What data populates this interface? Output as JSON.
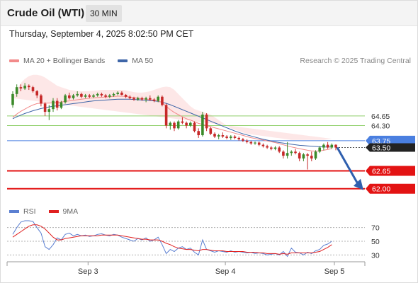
{
  "header": {
    "title": "Crude Oil (WTI)",
    "interval": "30 MIN"
  },
  "datetime": "Thursday, September 4, 2025 8:02:50 PM CET",
  "legend": [
    {
      "label": "MA 20 + Bollinger Bands",
      "color": "#f28a8a"
    },
    {
      "label": "MA 50",
      "color": "#3f66a8"
    }
  ],
  "copyright": "Research © 2025 Trading Central",
  "rsi_legend": [
    {
      "label": "RSI",
      "color": "#5b7fd1"
    },
    {
      "label": "9MA",
      "color": "#e02020"
    }
  ],
  "colors": {
    "bull": "#3b8a2a",
    "bear": "#c62828",
    "resistance": "#8fcf6a",
    "pivot": "#4a7fe0",
    "support": "#e31313",
    "arrow": "#2f5fae",
    "band": "#fde4e4",
    "ma20": "#f28a8a",
    "ma50": "#3f66a8"
  },
  "chart_data": [
    {
      "type": "candlestick",
      "x_ticks": [
        "Sep 3",
        "Sep 4",
        "Sep 5"
      ],
      "ylim": [
        61.4,
        66.4
      ],
      "levels": [
        {
          "value": 64.65,
          "label": "64.65",
          "kind": "resistance"
        },
        {
          "value": 64.3,
          "label": "64.30",
          "kind": "resistance"
        },
        {
          "value": 63.75,
          "label": "63.75",
          "kind": "pivot"
        },
        {
          "value": 62.65,
          "label": "62.65",
          "kind": "support"
        },
        {
          "value": 62.0,
          "label": "62.00",
          "kind": "support"
        }
      ],
      "last_price": {
        "value": 63.5,
        "label": "63.50"
      },
      "forecast_target": 62.0,
      "candles": [
        {
          "o": 65.05,
          "h": 65.55,
          "l": 64.95,
          "c": 65.45
        },
        {
          "o": 65.45,
          "h": 65.8,
          "l": 65.35,
          "c": 65.7
        },
        {
          "o": 65.7,
          "h": 65.8,
          "l": 65.55,
          "c": 65.65
        },
        {
          "o": 65.65,
          "h": 65.85,
          "l": 65.6,
          "c": 65.75
        },
        {
          "o": 65.75,
          "h": 65.8,
          "l": 65.6,
          "c": 65.7
        },
        {
          "o": 65.7,
          "h": 65.75,
          "l": 65.5,
          "c": 65.55
        },
        {
          "o": 65.55,
          "h": 65.6,
          "l": 65.3,
          "c": 65.4
        },
        {
          "o": 65.4,
          "h": 65.45,
          "l": 65.0,
          "c": 65.1
        },
        {
          "o": 65.1,
          "h": 65.15,
          "l": 64.65,
          "c": 64.8
        },
        {
          "o": 64.8,
          "h": 65.05,
          "l": 64.5,
          "c": 64.9
        },
        {
          "o": 64.9,
          "h": 65.3,
          "l": 64.8,
          "c": 65.2
        },
        {
          "o": 65.2,
          "h": 65.3,
          "l": 64.85,
          "c": 64.95
        },
        {
          "o": 64.95,
          "h": 65.2,
          "l": 64.9,
          "c": 65.15
        },
        {
          "o": 65.15,
          "h": 65.45,
          "l": 65.1,
          "c": 65.4
        },
        {
          "o": 65.4,
          "h": 65.5,
          "l": 65.25,
          "c": 65.3
        },
        {
          "o": 65.3,
          "h": 65.45,
          "l": 65.25,
          "c": 65.4
        },
        {
          "o": 65.4,
          "h": 65.55,
          "l": 65.35,
          "c": 65.45
        },
        {
          "o": 65.45,
          "h": 65.5,
          "l": 65.3,
          "c": 65.35
        },
        {
          "o": 65.35,
          "h": 65.45,
          "l": 65.3,
          "c": 65.4
        },
        {
          "o": 65.4,
          "h": 65.45,
          "l": 65.3,
          "c": 65.35
        },
        {
          "o": 65.35,
          "h": 65.45,
          "l": 65.3,
          "c": 65.4
        },
        {
          "o": 65.4,
          "h": 65.5,
          "l": 65.35,
          "c": 65.45
        },
        {
          "o": 65.45,
          "h": 65.5,
          "l": 65.35,
          "c": 65.4
        },
        {
          "o": 65.4,
          "h": 65.45,
          "l": 65.3,
          "c": 65.35
        },
        {
          "o": 65.35,
          "h": 65.45,
          "l": 65.3,
          "c": 65.4
        },
        {
          "o": 65.4,
          "h": 65.5,
          "l": 65.35,
          "c": 65.45
        },
        {
          "o": 65.45,
          "h": 65.55,
          "l": 65.4,
          "c": 65.5
        },
        {
          "o": 65.5,
          "h": 65.55,
          "l": 65.4,
          "c": 65.42
        },
        {
          "o": 65.42,
          "h": 65.45,
          "l": 65.3,
          "c": 65.35
        },
        {
          "o": 65.35,
          "h": 65.4,
          "l": 65.25,
          "c": 65.3
        },
        {
          "o": 65.3,
          "h": 65.35,
          "l": 65.2,
          "c": 65.25
        },
        {
          "o": 65.25,
          "h": 65.35,
          "l": 65.2,
          "c": 65.3
        },
        {
          "o": 65.3,
          "h": 65.35,
          "l": 65.2,
          "c": 65.25
        },
        {
          "o": 65.25,
          "h": 65.35,
          "l": 65.15,
          "c": 65.3
        },
        {
          "o": 65.3,
          "h": 65.4,
          "l": 65.2,
          "c": 65.25
        },
        {
          "o": 65.25,
          "h": 65.3,
          "l": 65.15,
          "c": 65.2
        },
        {
          "o": 65.2,
          "h": 65.4,
          "l": 65.15,
          "c": 65.35
        },
        {
          "o": 65.35,
          "h": 65.4,
          "l": 65.0,
          "c": 65.05
        },
        {
          "o": 65.05,
          "h": 65.1,
          "l": 64.2,
          "c": 64.3
        },
        {
          "o": 64.3,
          "h": 64.45,
          "l": 64.15,
          "c": 64.4
        },
        {
          "o": 64.4,
          "h": 64.45,
          "l": 64.1,
          "c": 64.2
        },
        {
          "o": 64.2,
          "h": 64.5,
          "l": 64.15,
          "c": 64.45
        },
        {
          "o": 64.45,
          "h": 64.6,
          "l": 64.35,
          "c": 64.4
        },
        {
          "o": 64.4,
          "h": 64.45,
          "l": 64.2,
          "c": 64.3
        },
        {
          "o": 64.3,
          "h": 64.45,
          "l": 64.25,
          "c": 64.4
        },
        {
          "o": 64.4,
          "h": 64.45,
          "l": 64.05,
          "c": 64.1
        },
        {
          "o": 64.1,
          "h": 64.2,
          "l": 63.85,
          "c": 63.95
        },
        {
          "o": 63.95,
          "h": 64.8,
          "l": 63.9,
          "c": 64.7
        },
        {
          "o": 64.7,
          "h": 64.75,
          "l": 64.1,
          "c": 64.2
        },
        {
          "o": 64.2,
          "h": 64.25,
          "l": 63.95,
          "c": 64.0
        },
        {
          "o": 64.0,
          "h": 64.05,
          "l": 63.85,
          "c": 63.9
        },
        {
          "o": 63.9,
          "h": 64.0,
          "l": 63.8,
          "c": 63.95
        },
        {
          "o": 63.95,
          "h": 64.05,
          "l": 63.85,
          "c": 63.9
        },
        {
          "o": 63.9,
          "h": 63.95,
          "l": 63.8,
          "c": 63.85
        },
        {
          "o": 63.85,
          "h": 63.95,
          "l": 63.78,
          "c": 63.9
        },
        {
          "o": 63.9,
          "h": 63.95,
          "l": 63.8,
          "c": 63.85
        },
        {
          "o": 63.85,
          "h": 63.9,
          "l": 63.75,
          "c": 63.8
        },
        {
          "o": 63.8,
          "h": 63.85,
          "l": 63.7,
          "c": 63.75
        },
        {
          "o": 63.75,
          "h": 63.8,
          "l": 63.65,
          "c": 63.7
        },
        {
          "o": 63.7,
          "h": 63.75,
          "l": 63.6,
          "c": 63.65
        },
        {
          "o": 63.65,
          "h": 63.72,
          "l": 63.6,
          "c": 63.68
        },
        {
          "o": 63.68,
          "h": 63.72,
          "l": 63.55,
          "c": 63.6
        },
        {
          "o": 63.6,
          "h": 63.65,
          "l": 63.5,
          "c": 63.55
        },
        {
          "o": 63.55,
          "h": 63.6,
          "l": 63.45,
          "c": 63.5
        },
        {
          "o": 63.5,
          "h": 63.55,
          "l": 63.4,
          "c": 63.45
        },
        {
          "o": 63.45,
          "h": 63.55,
          "l": 63.4,
          "c": 63.5
        },
        {
          "o": 63.5,
          "h": 63.55,
          "l": 63.3,
          "c": 63.35
        },
        {
          "o": 63.35,
          "h": 63.4,
          "l": 63.1,
          "c": 63.2
        },
        {
          "o": 63.2,
          "h": 63.7,
          "l": 63.1,
          "c": 63.3
        },
        {
          "o": 63.3,
          "h": 63.4,
          "l": 63.2,
          "c": 63.35
        },
        {
          "o": 63.35,
          "h": 63.45,
          "l": 63.25,
          "c": 63.3
        },
        {
          "o": 63.3,
          "h": 63.35,
          "l": 63.0,
          "c": 63.1
        },
        {
          "o": 63.1,
          "h": 63.3,
          "l": 63.0,
          "c": 63.25
        },
        {
          "o": 63.25,
          "h": 63.3,
          "l": 62.7,
          "c": 63.2
        },
        {
          "o": 63.2,
          "h": 63.35,
          "l": 63.0,
          "c": 63.1
        },
        {
          "o": 63.1,
          "h": 63.4,
          "l": 63.05,
          "c": 63.35
        },
        {
          "o": 63.35,
          "h": 63.55,
          "l": 63.3,
          "c": 63.5
        },
        {
          "o": 63.5,
          "h": 63.65,
          "l": 63.4,
          "c": 63.6
        },
        {
          "o": 63.6,
          "h": 63.7,
          "l": 63.45,
          "c": 63.5
        },
        {
          "o": 63.5,
          "h": 63.65,
          "l": 63.45,
          "c": 63.6
        },
        {
          "o": 63.6,
          "h": 63.62,
          "l": 63.4,
          "c": 63.5
        }
      ],
      "ma20": [
        64.6,
        64.72,
        64.82,
        64.9,
        64.98,
        65.05,
        65.1,
        65.12,
        65.12,
        65.12,
        65.13,
        65.14,
        65.16,
        65.18,
        65.2,
        65.22,
        65.24,
        65.26,
        65.28,
        65.3,
        65.31,
        65.32,
        65.33,
        65.34,
        65.35,
        65.36,
        65.37,
        65.37,
        65.36,
        65.34,
        65.32,
        65.3,
        65.28,
        65.26,
        65.24,
        65.22,
        65.2,
        65.14,
        65.0,
        64.88,
        64.78,
        64.7,
        64.62,
        64.55,
        64.5,
        64.44,
        64.38,
        64.34,
        64.3,
        64.26,
        64.22,
        64.18,
        64.14,
        64.1,
        64.06,
        64.02,
        63.98,
        63.94,
        63.9,
        63.86,
        63.83,
        63.8,
        63.77,
        63.74,
        63.71,
        63.68,
        63.64,
        63.6,
        63.56,
        63.52,
        63.49,
        63.46,
        63.43,
        63.4,
        63.38,
        63.37,
        63.38,
        63.4,
        63.43,
        63.46
      ],
      "bb_upper": [
        65.3,
        65.6,
        65.85,
        66.0,
        66.1,
        66.15,
        66.15,
        66.12,
        66.05,
        65.95,
        65.85,
        65.75,
        65.7,
        65.65,
        65.6,
        65.58,
        65.56,
        65.55,
        65.55,
        65.56,
        65.57,
        65.58,
        65.6,
        65.6,
        65.6,
        65.6,
        65.6,
        65.6,
        65.58,
        65.55,
        65.52,
        65.5,
        65.5,
        65.52,
        65.55,
        65.6,
        65.65,
        65.7,
        65.72,
        65.7,
        65.6,
        65.45,
        65.3,
        65.15,
        65.0,
        64.9,
        64.85,
        64.8,
        64.75,
        64.7,
        64.6,
        64.5,
        64.4,
        64.3,
        64.2,
        64.15,
        64.1,
        64.05,
        64.0,
        63.98,
        63.96,
        63.94,
        63.92,
        63.9,
        63.88,
        63.86,
        63.84,
        63.82,
        63.8,
        63.78,
        63.78,
        63.78,
        63.78,
        63.78,
        63.78,
        63.78,
        63.78,
        63.78,
        63.8,
        63.82
      ],
      "bb_lower": [
        63.9,
        63.85,
        63.8,
        63.8,
        63.85,
        63.95,
        64.1,
        64.25,
        64.4,
        64.5,
        64.6,
        64.7,
        64.78,
        64.85,
        64.9,
        64.95,
        65.0,
        65.02,
        65.04,
        65.05,
        65.06,
        65.07,
        65.07,
        65.08,
        65.1,
        65.12,
        65.14,
        65.14,
        65.14,
        65.13,
        65.12,
        65.1,
        65.06,
        65.0,
        64.9,
        64.8,
        64.7,
        64.55,
        64.3,
        64.05,
        63.9,
        63.8,
        63.75,
        63.75,
        63.78,
        63.8,
        63.82,
        63.85,
        63.86,
        63.84,
        63.82,
        63.8,
        63.78,
        63.76,
        63.74,
        63.72,
        63.7,
        63.68,
        63.66,
        63.62,
        63.58,
        63.54,
        63.5,
        63.46,
        63.42,
        63.38,
        63.34,
        63.3,
        63.25,
        63.2,
        63.15,
        63.1,
        63.05,
        63.0,
        62.98,
        62.96,
        62.98,
        63.0,
        63.02,
        63.05
      ],
      "ma50": [
        64.55,
        64.62,
        64.68,
        64.74,
        64.79,
        64.84,
        64.88,
        64.92,
        64.95,
        64.98,
        65.0,
        65.02,
        65.04,
        65.06,
        65.08,
        65.1,
        65.12,
        65.14,
        65.16,
        65.18,
        65.2,
        65.21,
        65.22,
        65.23,
        65.24,
        65.25,
        65.26,
        65.26,
        65.26,
        65.26,
        65.25,
        65.24,
        65.23,
        65.22,
        65.21,
        65.2,
        65.18,
        65.15,
        65.11,
        65.06,
        65.0,
        64.94,
        64.88,
        64.82,
        64.76,
        64.7,
        64.64,
        64.58,
        64.52,
        64.46,
        64.4,
        64.34,
        64.28,
        64.22,
        64.16,
        64.1,
        64.05,
        64.0,
        63.96,
        63.92,
        63.88,
        63.84,
        63.8,
        63.77,
        63.74,
        63.71,
        63.68,
        63.66,
        63.64,
        63.62,
        63.6,
        63.58,
        63.57,
        63.56,
        63.55,
        63.54,
        63.53,
        63.52,
        63.52,
        63.52
      ]
    },
    {
      "type": "line",
      "ylim": [
        20,
        80
      ],
      "y_ticks": [
        70,
        50,
        30
      ],
      "series": [
        {
          "name": "RSI",
          "values": [
            60,
            70,
            78,
            80,
            80,
            79,
            70,
            62,
            42,
            38,
            45,
            55,
            52,
            60,
            62,
            58,
            60,
            58,
            59,
            57,
            58,
            60,
            61,
            59,
            58,
            60,
            59,
            56,
            54,
            52,
            50,
            54,
            52,
            55,
            50,
            52,
            56,
            45,
            32,
            38,
            35,
            40,
            42,
            38,
            40,
            34,
            30,
            52,
            38,
            36,
            34,
            36,
            35,
            34,
            36,
            34,
            35,
            34,
            33,
            34,
            32,
            33,
            32,
            30,
            31,
            32,
            30,
            35,
            28,
            40,
            34,
            33,
            30,
            34,
            32,
            36,
            38,
            44,
            46,
            50
          ]
        },
        {
          "name": "9MA",
          "values": [
            56,
            60,
            64,
            68,
            72,
            74,
            74,
            72,
            68,
            62,
            56,
            52,
            52,
            54,
            55,
            56,
            57,
            58,
            58,
            58,
            58,
            58,
            59,
            59,
            59,
            59,
            59,
            58,
            57,
            56,
            55,
            54,
            53,
            53,
            52,
            52,
            52,
            50,
            47,
            45,
            42,
            40,
            39,
            38,
            38,
            37,
            36,
            38,
            38,
            37,
            36,
            36,
            36,
            35,
            35,
            35,
            35,
            35,
            34,
            34,
            34,
            33,
            33,
            32,
            32,
            32,
            31,
            32,
            31,
            33,
            33,
            33,
            33,
            33,
            33,
            34,
            35,
            38,
            41,
            45
          ]
        }
      ]
    }
  ]
}
